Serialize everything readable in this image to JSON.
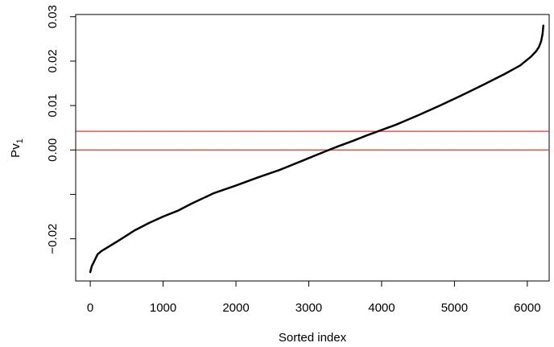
{
  "chart_data": {
    "type": "line",
    "title": "",
    "xlabel": "Sorted index",
    "ylabel_main": "Pv",
    "ylabel_sub": "1",
    "xlim": [
      -200,
      6300
    ],
    "ylim": [
      -0.0295,
      0.0305
    ],
    "x_ticks": [
      0,
      1000,
      2000,
      3000,
      4000,
      5000,
      6000
    ],
    "x_tick_labels": [
      "0",
      "1000",
      "2000",
      "3000",
      "4000",
      "5000",
      "6000"
    ],
    "y_ticks": [
      -0.02,
      -0.01,
      0.0,
      0.01,
      0.02,
      0.03
    ],
    "y_tick_labels": [
      "−0.02",
      "",
      "0.00",
      "0.01",
      "0.02",
      "0.03"
    ],
    "grid": false,
    "series": [
      {
        "color": "#000000",
        "x": [
          0,
          20,
          50,
          100,
          150,
          250,
          400,
          600,
          800,
          1000,
          1200,
          1400,
          1700,
          2000,
          2300,
          2600,
          2900,
          3200,
          3400,
          3600,
          3800,
          4000,
          4200,
          4500,
          4800,
          5100,
          5400,
          5700,
          5900,
          6050,
          6120,
          6160,
          6190,
          6210,
          6220
        ],
        "y": [
          -0.0275,
          -0.0262,
          -0.0252,
          -0.0235,
          -0.0228,
          -0.0218,
          -0.0203,
          -0.0182,
          -0.0165,
          -0.015,
          -0.0137,
          -0.012,
          -0.0097,
          -0.008,
          -0.0062,
          -0.0045,
          -0.0025,
          -0.0005,
          0.0008,
          0.002,
          0.0033,
          0.0045,
          0.0057,
          0.0078,
          0.01,
          0.0123,
          0.0147,
          0.0172,
          0.019,
          0.021,
          0.0222,
          0.0232,
          0.0245,
          0.0262,
          0.028
        ]
      }
    ],
    "reference_lines": [
      {
        "axis": "y",
        "value": 0.0,
        "color": "#e8332a"
      },
      {
        "axis": "y",
        "value": 0.0042,
        "color": "#e8332a"
      }
    ]
  }
}
